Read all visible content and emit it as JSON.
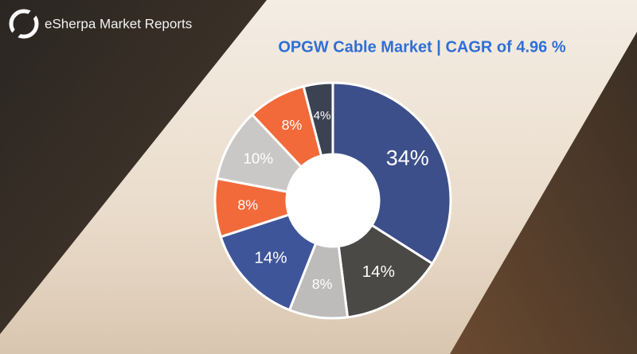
{
  "brand": "eSherpa Market Reports",
  "chart_data": {
    "type": "donut",
    "title": "OPGW Cable Market  |  CAGR of 4.96 %",
    "values": [
      34,
      14,
      8,
      14,
      8,
      10,
      8,
      4
    ],
    "value_labels": [
      "34%",
      "14%",
      "8%",
      "14%",
      "8%",
      "10%",
      "8%",
      "4%"
    ],
    "colors": [
      "#3d4f8a",
      "#4a4946",
      "#bdbcbb",
      "#3e559a",
      "#f26a3a",
      "#c9c8c6",
      "#f26a3a",
      "#3b4252"
    ]
  }
}
